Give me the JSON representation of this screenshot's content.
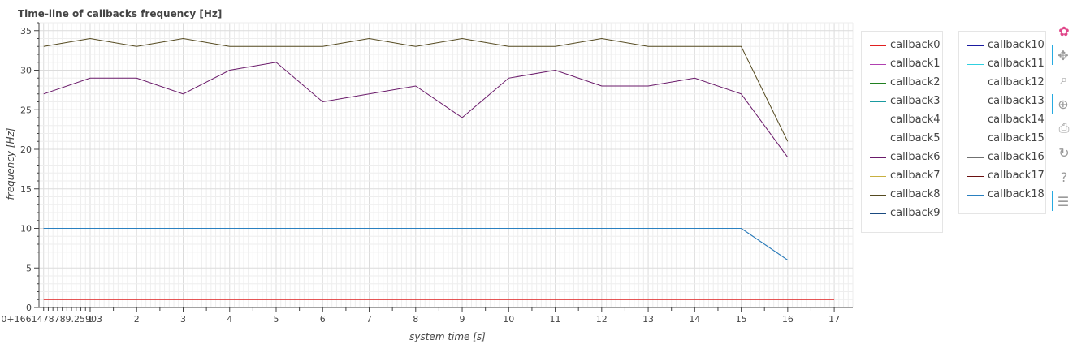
{
  "chart_data": {
    "type": "line",
    "title": "Time-line of callbacks frequency [Hz]",
    "xlabel": "system time [s]",
    "ylabel": "frequency [Hz]",
    "xlim": [
      -0.1,
      17.4
    ],
    "ylim": [
      0,
      36
    ],
    "x_offset_label": "0+1661478789.25903",
    "x_ticks": [
      1,
      2,
      3,
      4,
      5,
      6,
      7,
      8,
      9,
      10,
      11,
      12,
      13,
      14,
      15,
      16,
      17
    ],
    "y_ticks": [
      0,
      5,
      10,
      15,
      20,
      25,
      30,
      35
    ],
    "grid": true,
    "legend_position": "right",
    "series": [
      {
        "name": "callback0",
        "color": "#e02020",
        "x": [
          0,
          17
        ],
        "y": [
          1,
          1
        ]
      },
      {
        "name": "callback1",
        "color": "#b040b0",
        "x": [],
        "y": []
      },
      {
        "name": "callback2",
        "color": "#208020",
        "x": [],
        "y": []
      },
      {
        "name": "callback3",
        "color": "#1a9aa0",
        "x": [],
        "y": []
      },
      {
        "name": "callback4",
        "color": "#ffffff",
        "x": [],
        "y": []
      },
      {
        "name": "callback5",
        "color": "#ffffff",
        "x": [],
        "y": []
      },
      {
        "name": "callback6",
        "color": "#6a1a6a",
        "x": [
          0,
          1,
          2,
          3,
          4,
          5,
          6,
          7,
          8,
          9,
          10,
          11,
          12,
          13,
          14,
          15,
          16
        ],
        "y": [
          27,
          29,
          29,
          27,
          30,
          31,
          26,
          27,
          28,
          24,
          29,
          30,
          28,
          28,
          29,
          27,
          19
        ]
      },
      {
        "name": "callback7",
        "color": "#c8b040",
        "x": [],
        "y": []
      },
      {
        "name": "callback8",
        "color": "#554a20",
        "x": [
          0,
          1,
          2,
          3,
          4,
          5,
          6,
          7,
          8,
          9,
          10,
          11,
          12,
          13,
          14,
          15,
          16
        ],
        "y": [
          33,
          34,
          33,
          34,
          33,
          33,
          33,
          34,
          33,
          34,
          33,
          33,
          34,
          33,
          33,
          33,
          21
        ]
      },
      {
        "name": "callback9",
        "color": "#1a4a80",
        "x": [
          0,
          15,
          16
        ],
        "y": [
          10,
          10,
          6
        ]
      },
      {
        "name": "callback10",
        "color": "#1a1aa0",
        "x": [],
        "y": []
      },
      {
        "name": "callback11",
        "color": "#30d0e0",
        "x": [],
        "y": []
      },
      {
        "name": "callback12",
        "color": "#ffffff",
        "x": [],
        "y": []
      },
      {
        "name": "callback13",
        "color": "#ffffff",
        "x": [],
        "y": []
      },
      {
        "name": "callback14",
        "color": "#ffffff",
        "x": [],
        "y": []
      },
      {
        "name": "callback15",
        "color": "#ffffff",
        "x": [],
        "y": []
      },
      {
        "name": "callback16",
        "color": "#707070",
        "x": [],
        "y": []
      },
      {
        "name": "callback17",
        "color": "#6a1010",
        "x": [],
        "y": []
      },
      {
        "name": "callback18",
        "color": "#2a80c0",
        "x": [
          0,
          15,
          16
        ],
        "y": [
          10,
          10,
          6
        ]
      }
    ]
  },
  "toolbar": {
    "items": [
      {
        "name": "bokeh-logo-icon",
        "glyph": "✿",
        "active": false
      },
      {
        "name": "pan-icon",
        "glyph": "✥",
        "active": true
      },
      {
        "name": "box-zoom-icon",
        "glyph": "⌕",
        "active": false
      },
      {
        "name": "wheel-zoom-icon",
        "glyph": "⊕",
        "active": true
      },
      {
        "name": "save-icon",
        "glyph": "⎙",
        "active": false
      },
      {
        "name": "reset-icon",
        "glyph": "↻",
        "active": false
      },
      {
        "name": "help-icon",
        "glyph": "?",
        "active": false
      },
      {
        "name": "hover-icon",
        "glyph": "☰",
        "active": true
      }
    ]
  }
}
